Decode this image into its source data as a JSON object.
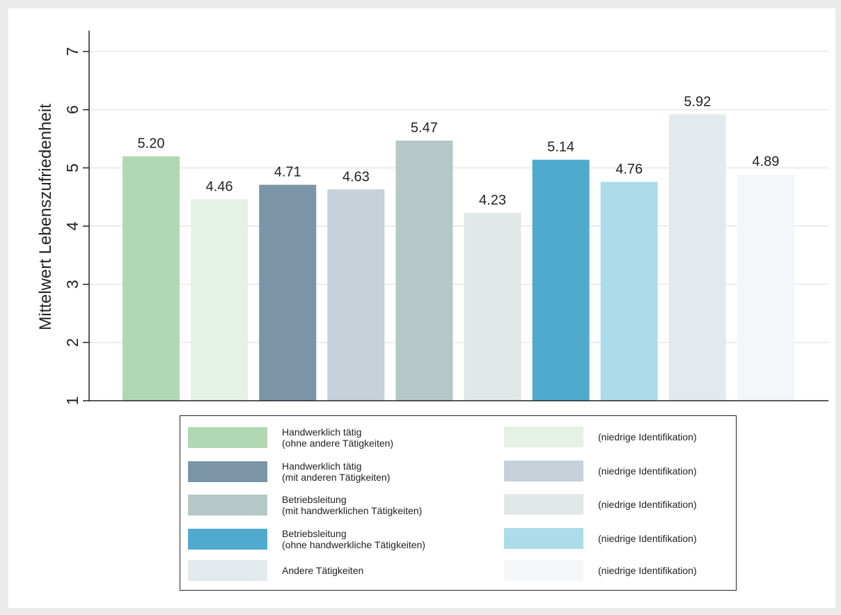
{
  "chart_data": {
    "type": "bar",
    "ylabel": "Mittelwert Lebenszufriedenheit",
    "ylim": [
      1,
      7
    ],
    "yticks": [
      "1",
      "2",
      "3",
      "4",
      "5",
      "6",
      "7"
    ],
    "grid": true,
    "legend_position": "bottom",
    "bars": [
      {
        "value": 5.2,
        "label": "5.20",
        "color": "#b1d8b2"
      },
      {
        "value": 4.46,
        "label": "4.46",
        "color": "#e4f1e4"
      },
      {
        "value": 4.71,
        "label": "4.71",
        "color": "#7b95a6"
      },
      {
        "value": 4.63,
        "label": "4.63",
        "color": "#c6d1da"
      },
      {
        "value": 5.47,
        "label": "5.47",
        "color": "#b4c9c7"
      },
      {
        "value": 4.23,
        "label": "4.23",
        "color": "#e1e8e7"
      },
      {
        "value": 5.14,
        "label": "5.14",
        "color": "#50aace"
      },
      {
        "value": 4.76,
        "label": "4.76",
        "color": "#acdbea"
      },
      {
        "value": 5.92,
        "label": "5.92",
        "color": "#e2eaed"
      },
      {
        "value": 4.89,
        "label": "4.89",
        "color": "#f4f7f9"
      }
    ]
  },
  "legend": {
    "left": [
      {
        "lines": [
          "Handwerklich tätig",
          "(ohne andere Tätigkeiten)"
        ],
        "color": "#b1d8b2"
      },
      {
        "lines": [
          "Handwerklich tätig",
          "(mit anderen Tätigkeiten)"
        ],
        "color": "#7b95a6"
      },
      {
        "lines": [
          "Betriebsleitung",
          "(mit handwerklichen Tätigkeiten)"
        ],
        "color": "#b4c9c7"
      },
      {
        "lines": [
          "Betriebsleitung",
          "(ohne handwerkliche Tätigkeiten)"
        ],
        "color": "#50aace"
      },
      {
        "lines": [
          "Andere Tätigkeiten"
        ],
        "color": "#e2eaed"
      }
    ],
    "right": [
      {
        "lines": [
          "(niedrige Identifikation)"
        ],
        "color": "#e4f1e4"
      },
      {
        "lines": [
          "(niedrige Identifikation)"
        ],
        "color": "#c6d1da"
      },
      {
        "lines": [
          "(niedrige Identifikation)"
        ],
        "color": "#e1e8e7"
      },
      {
        "lines": [
          "(niedrige Identifikation)"
        ],
        "color": "#acdbea"
      },
      {
        "lines": [
          "(niedrige Identifikation)"
        ],
        "color": "#f4f7f9"
      }
    ]
  }
}
